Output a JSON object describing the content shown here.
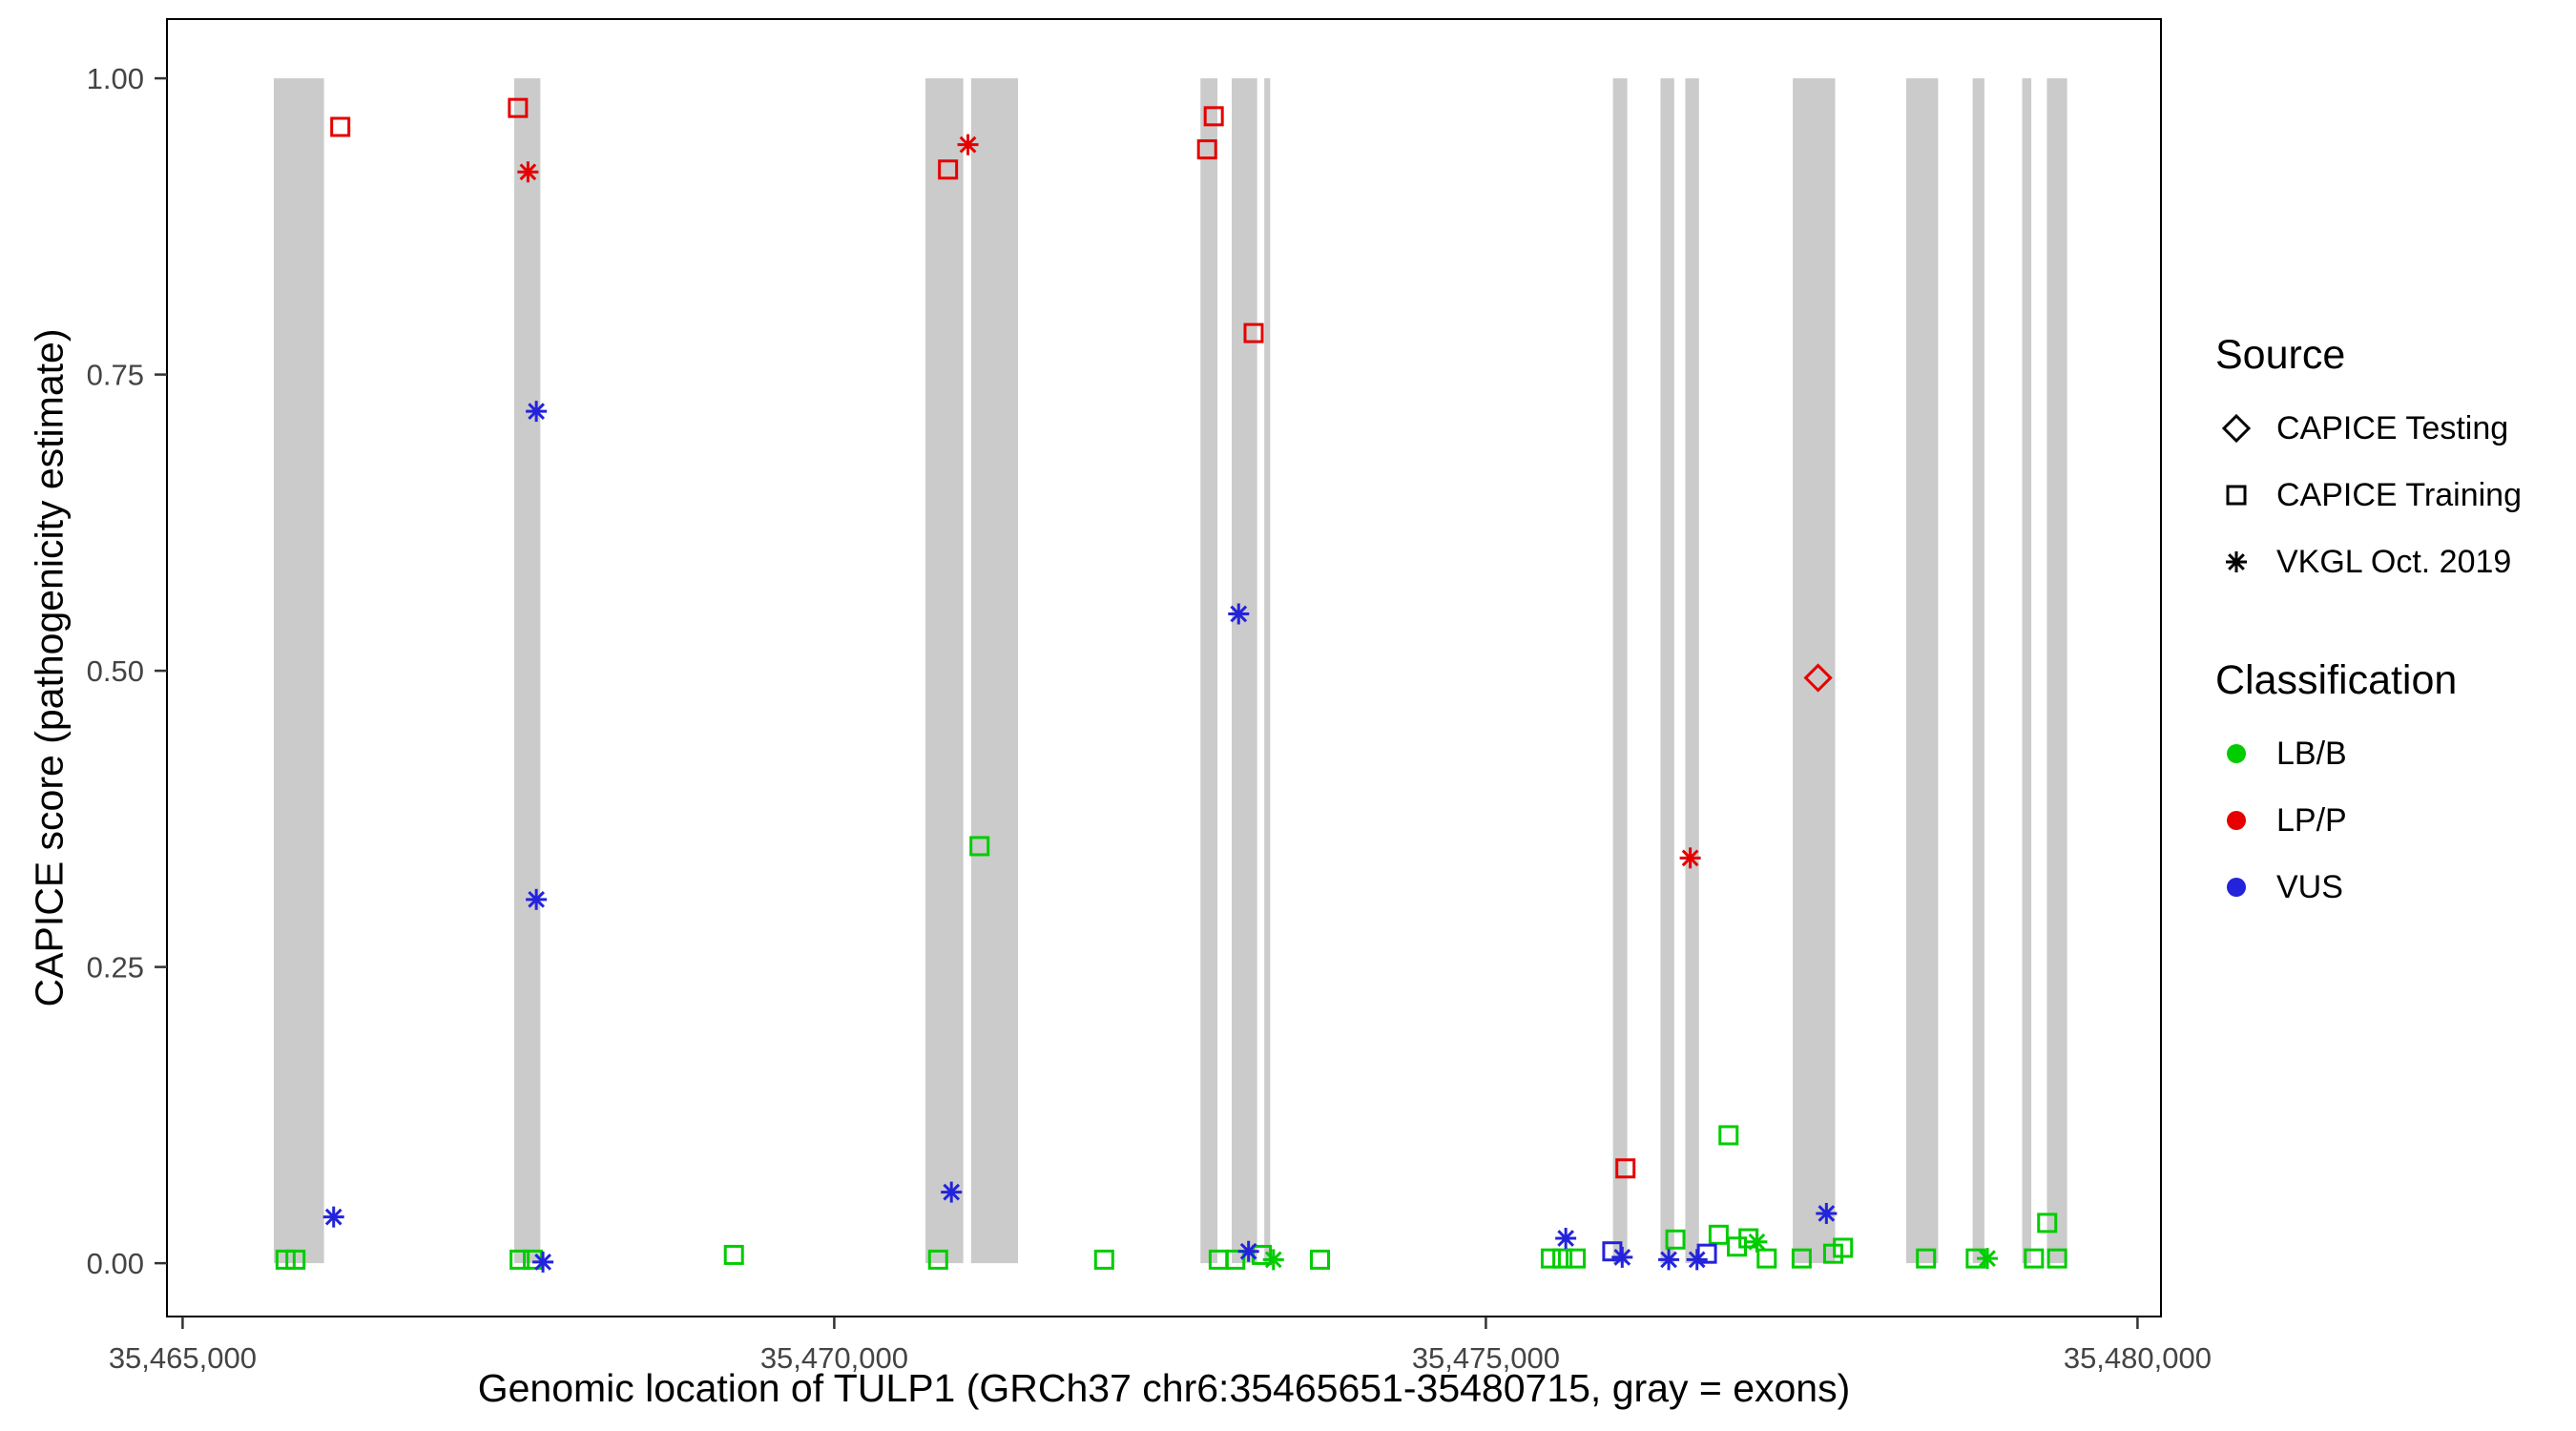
{
  "legend": {
    "source": {
      "title": "Source",
      "items": [
        {
          "shape": "diamond",
          "label": "CAPICE Testing"
        },
        {
          "shape": "square",
          "label": "CAPICE Training"
        },
        {
          "shape": "asterisk",
          "label": "VKGL Oct. 2019"
        }
      ]
    },
    "classification": {
      "title": "Classification",
      "items": [
        {
          "color": "#00CC00",
          "label": "LB/B"
        },
        {
          "color": "#E60000",
          "label": "LP/P"
        },
        {
          "color": "#2323DC",
          "label": "VUS"
        }
      ]
    }
  },
  "chart_data": {
    "type": "scatter",
    "title": "",
    "xlabel": "Genomic location of TULP1 (GRCh37 chr6:35465651-35480715, gray = exons)",
    "ylabel": "CAPICE score (pathogenicity estimate)",
    "xlim": [
      35464880,
      35480180
    ],
    "ylim": [
      -0.045,
      1.05
    ],
    "x_ticks": [
      {
        "value": 35465000,
        "label": "35,465,000"
      },
      {
        "value": 35470000,
        "label": "35,470,000"
      },
      {
        "value": 35475000,
        "label": "35,475,000"
      },
      {
        "value": 35480000,
        "label": "35,480,000"
      }
    ],
    "y_ticks": [
      {
        "value": 0,
        "label": "0.00"
      },
      {
        "value": 0.25,
        "label": "0.25"
      },
      {
        "value": 0.5,
        "label": "0.50"
      },
      {
        "value": 0.75,
        "label": "0.75"
      },
      {
        "value": 1,
        "label": "1.00"
      }
    ],
    "exon_color": "#CBCBCB",
    "grid": false,
    "legend_position": "right",
    "exons": [
      [
        35465700,
        35466085
      ],
      [
        35467545,
        35467745
      ],
      [
        35470700,
        35470990
      ],
      [
        35471050,
        35471410
      ],
      [
        35472810,
        35472940
      ],
      [
        35473050,
        35473245
      ],
      [
        35473300,
        35473345
      ],
      [
        35475975,
        35476085
      ],
      [
        35476340,
        35476445
      ],
      [
        35476530,
        35476635
      ],
      [
        35477355,
        35477680
      ],
      [
        35478225,
        35478470
      ],
      [
        35478735,
        35478825
      ],
      [
        35479115,
        35479185
      ],
      [
        35479305,
        35479460
      ]
    ],
    "shape_meaning": {
      "diamond": "CAPICE Testing",
      "square": "CAPICE Training",
      "asterisk": "VKGL Oct. 2019"
    },
    "series": [
      {
        "name": "LB/B",
        "color": "#00CC00",
        "points": [
          [
            35465790,
            0.003,
            "square"
          ],
          [
            35465866,
            0.003,
            "square"
          ],
          [
            35467586,
            0.003,
            "square"
          ],
          [
            35467688,
            0.003,
            "square"
          ],
          [
            35469230,
            0.007,
            "square"
          ],
          [
            35470797,
            0.003,
            "square"
          ],
          [
            35471115,
            0.352,
            "square"
          ],
          [
            35472071,
            0.003,
            "square"
          ],
          [
            35472950,
            0.003,
            "square"
          ],
          [
            35473077,
            0.003,
            "square"
          ],
          [
            35473281,
            0.007,
            "square"
          ],
          [
            35473370,
            0.003,
            "asterisk"
          ],
          [
            35473727,
            0.003,
            "square"
          ],
          [
            35475498,
            0.004,
            "square"
          ],
          [
            35475587,
            0.004,
            "square"
          ],
          [
            35475689,
            0.004,
            "square"
          ],
          [
            35476454,
            0.02,
            "square"
          ],
          [
            35476786,
            0.024,
            "square"
          ],
          [
            35476862,
            0.108,
            "square"
          ],
          [
            35476926,
            0.014,
            "square"
          ],
          [
            35477015,
            0.021,
            "square"
          ],
          [
            35477079,
            0.018,
            "asterisk"
          ],
          [
            35477155,
            0.004,
            "square"
          ],
          [
            35477423,
            0.004,
            "square"
          ],
          [
            35477665,
            0.008,
            "square"
          ],
          [
            35477740,
            0.013,
            "square"
          ],
          [
            35478377,
            0.004,
            "square"
          ],
          [
            35478759,
            0.004,
            "square"
          ],
          [
            35478848,
            0.004,
            "asterisk"
          ],
          [
            35479205,
            0.004,
            "square"
          ],
          [
            35479307,
            0.034,
            "square"
          ],
          [
            35479383,
            0.004,
            "square"
          ]
        ]
      },
      {
        "name": "VUS",
        "color": "#2323DC",
        "points": [
          [
            35466159,
            0.039,
            "asterisk"
          ],
          [
            35467714,
            0.719,
            "asterisk"
          ],
          [
            35467714,
            0.307,
            "asterisk"
          ],
          [
            35467765,
            0.001,
            "asterisk"
          ],
          [
            35470899,
            0.06,
            "asterisk"
          ],
          [
            35473103,
            0.548,
            "asterisk"
          ],
          [
            35473179,
            0.01,
            "asterisk"
          ],
          [
            35475613,
            0.021,
            "asterisk"
          ],
          [
            35475970,
            0.01,
            "square"
          ],
          [
            35476046,
            0.005,
            "asterisk"
          ],
          [
            35476403,
            0.003,
            "asterisk"
          ],
          [
            35476620,
            0.003,
            "asterisk"
          ],
          [
            35476696,
            0.008,
            "square"
          ],
          [
            35477613,
            0.042,
            "asterisk"
          ]
        ]
      },
      {
        "name": "LP/P",
        "color": "#E60000",
        "points": [
          [
            35466210,
            0.959,
            "square"
          ],
          [
            35467573,
            0.975,
            "square"
          ],
          [
            35467650,
            0.921,
            "asterisk"
          ],
          [
            35470873,
            0.923,
            "square"
          ],
          [
            35471026,
            0.944,
            "asterisk"
          ],
          [
            35472861,
            0.94,
            "square"
          ],
          [
            35472912,
            0.968,
            "square"
          ],
          [
            35473218,
            0.785,
            "square"
          ],
          [
            35476071,
            0.08,
            "square"
          ],
          [
            35476568,
            0.342,
            "asterisk"
          ],
          [
            35477549,
            0.494,
            "diamond"
          ]
        ]
      }
    ]
  }
}
